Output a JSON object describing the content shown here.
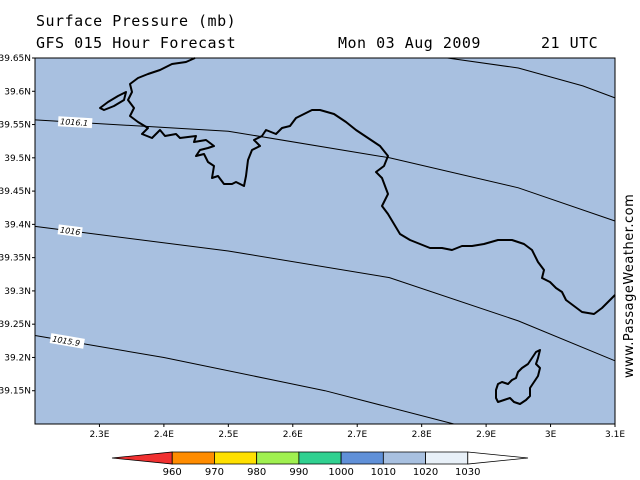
{
  "header": {
    "title": "Surface Pressure (mb)",
    "subtitle": "GFS 015 Hour Forecast",
    "date": "Mon 03 Aug 2009",
    "time": "21 UTC"
  },
  "map": {
    "background_color": "#a8c0e0",
    "lat_range": [
      39.1,
      39.65
    ],
    "lon_range": [
      2.2,
      3.1
    ],
    "lat_ticks": [
      "39.65N",
      "39.6N",
      "39.55N",
      "39.5N",
      "39.45N",
      "39.4N",
      "39.35N",
      "39.3N",
      "39.25N",
      "39.2N",
      "39.15N"
    ],
    "lon_ticks": [
      "2.3E",
      "2.4E",
      "2.5E",
      "2.6E",
      "2.7E",
      "2.8E",
      "2.9E",
      "3E",
      "3.1E"
    ],
    "isobars": [
      {
        "label": "1016.1",
        "points": [
          [
            2.2,
            39.557
          ],
          [
            2.5,
            39.54
          ],
          [
            2.75,
            39.5
          ],
          [
            2.95,
            39.455
          ],
          [
            3.1,
            39.405
          ]
        ]
      },
      {
        "label": "1016",
        "points": [
          [
            2.2,
            39.397
          ],
          [
            2.5,
            39.36
          ],
          [
            2.75,
            39.32
          ],
          [
            2.95,
            39.255
          ],
          [
            3.1,
            39.195
          ]
        ]
      },
      {
        "label": "1015.9",
        "points": [
          [
            2.2,
            39.233
          ],
          [
            2.4,
            39.2
          ],
          [
            2.65,
            39.15
          ],
          [
            2.85,
            39.1
          ]
        ]
      },
      {
        "label": "",
        "points": [
          [
            2.84,
            39.65
          ],
          [
            2.95,
            39.635
          ],
          [
            3.05,
            39.608
          ],
          [
            3.1,
            39.59
          ]
        ]
      }
    ]
  },
  "colorbar": {
    "values": [
      "960",
      "970",
      "980",
      "990",
      "1000",
      "1010",
      "1020",
      "1030"
    ],
    "colors": [
      "#f03030",
      "#ff8c00",
      "#ffe000",
      "#a0f050",
      "#30d090",
      "#6090d8",
      "#a8c0e0",
      "#e8f0f8",
      "#ffffff"
    ]
  },
  "watermark": "www.PassageWeather.com"
}
